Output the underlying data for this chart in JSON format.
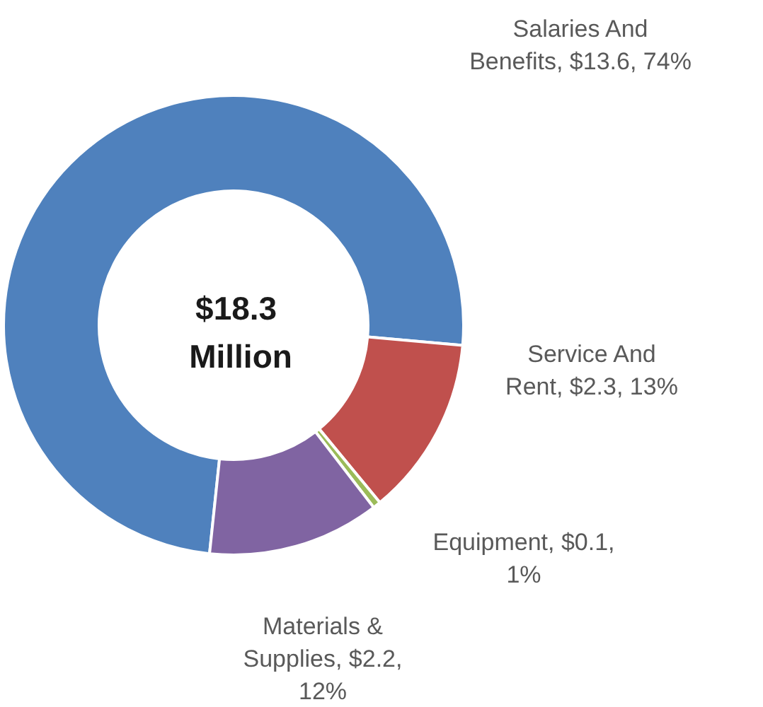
{
  "chart_data": {
    "type": "donut",
    "title": "$18.3 Million",
    "categories": [
      "Salaries And Benefits",
      "Service And Rent",
      "Equipment",
      "Materials & Supplies"
    ],
    "values": [
      13.6,
      2.3,
      0.1,
      2.2
    ],
    "value_labels": [
      "$13.6, 74%",
      "$2.3, 13%",
      "$0.1, 1%",
      "$2.2, 12%"
    ],
    "colors": [
      "#4f81bd",
      "#c0504d",
      "#9bbb59",
      "#8064a2"
    ],
    "legend": false
  }
}
